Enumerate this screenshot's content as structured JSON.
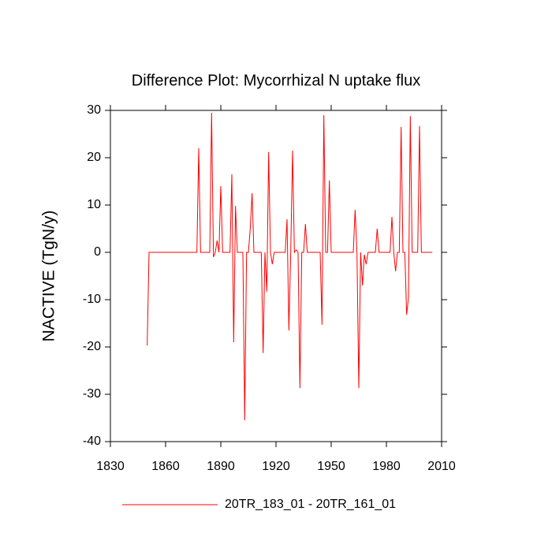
{
  "chart_data": {
    "type": "line",
    "title": "Difference Plot: Mycorrhizal N uptake flux",
    "y_label": "NACTIVE  (TgN/y)",
    "x": [
      1850,
      1851,
      1852,
      1853,
      1854,
      1855,
      1856,
      1857,
      1858,
      1859,
      1860,
      1861,
      1862,
      1863,
      1864,
      1865,
      1866,
      1867,
      1868,
      1869,
      1870,
      1871,
      1872,
      1873,
      1874,
      1875,
      1876,
      1877,
      1878,
      1879,
      1880,
      1881,
      1882,
      1883,
      1884,
      1885,
      1886,
      1887,
      1888,
      1889,
      1890,
      1891,
      1892,
      1893,
      1894,
      1895,
      1896,
      1897,
      1898,
      1899,
      1900,
      1901,
      1902,
      1903,
      1904,
      1905,
      1906,
      1907,
      1908,
      1909,
      1910,
      1911,
      1912,
      1913,
      1914,
      1915,
      1916,
      1917,
      1918,
      1919,
      1920,
      1921,
      1922,
      1923,
      1924,
      1925,
      1926,
      1927,
      1928,
      1929,
      1930,
      1931,
      1932,
      1933,
      1934,
      1935,
      1936,
      1937,
      1938,
      1939,
      1940,
      1941,
      1942,
      1943,
      1944,
      1945,
      1946,
      1947,
      1948,
      1949,
      1950,
      1951,
      1952,
      1953,
      1954,
      1955,
      1956,
      1957,
      1958,
      1959,
      1960,
      1961,
      1962,
      1963,
      1964,
      1965,
      1966,
      1967,
      1968,
      1969,
      1970,
      1971,
      1972,
      1973,
      1974,
      1975,
      1976,
      1977,
      1978,
      1979,
      1980,
      1981,
      1982,
      1983,
      1984,
      1985,
      1986,
      1987,
      1988,
      1989,
      1990,
      1991,
      1992,
      1993,
      1994,
      1995,
      1996,
      1997,
      1998,
      1999,
      2000,
      2001,
      2002,
      2003,
      2004,
      2005
    ],
    "series": [
      {
        "name": "20TR_183_01 - 20TR_161_01",
        "color": "#ff0000",
        "values": [
          -19.7,
          0,
          0,
          0,
          0,
          0,
          0,
          0,
          0,
          0,
          0,
          0,
          0,
          0,
          0,
          0,
          0,
          0,
          0,
          0,
          0,
          0,
          0,
          0,
          0,
          0,
          0,
          0,
          22,
          0,
          0,
          0,
          0,
          0,
          0,
          29.5,
          -1,
          0,
          2.5,
          0,
          14,
          0,
          0,
          0,
          0,
          0,
          16.5,
          -19,
          9.8,
          0,
          0,
          0,
          0,
          -35.5,
          0,
          0,
          5,
          12.5,
          0,
          0,
          0,
          0,
          0,
          -21.3,
          0,
          -8.3,
          21.2,
          0,
          -2.5,
          0,
          0,
          0,
          0,
          0,
          0,
          0,
          7,
          -16.5,
          0,
          21.5,
          0,
          0.5,
          0,
          -28.7,
          0,
          0,
          6,
          0,
          0,
          0,
          0,
          0,
          0,
          0,
          0,
          -15.3,
          29,
          0,
          0,
          15.2,
          0,
          0,
          0,
          0,
          0,
          0,
          0,
          0,
          0,
          0,
          0,
          0,
          0,
          9,
          0,
          -28.7,
          0,
          -7,
          -0.5,
          -2.5,
          0,
          0,
          0,
          0,
          0,
          5,
          0,
          0,
          0,
          0,
          0,
          0,
          0,
          7.5,
          0,
          -4,
          0,
          0,
          26.5,
          0,
          0,
          -13.2,
          -9.5,
          28.8,
          0,
          0,
          0,
          0,
          26.7,
          0,
          0,
          0,
          0,
          0,
          0,
          0
        ]
      }
    ],
    "xlim": [
      1830,
      2010
    ],
    "xticks": [
      1830,
      1860,
      1890,
      1920,
      1950,
      1980,
      2010
    ],
    "ylim": [
      -40,
      30
    ],
    "yticks": [
      -40,
      -30,
      -20,
      -10,
      0,
      10,
      20,
      30
    ],
    "grid": false
  }
}
